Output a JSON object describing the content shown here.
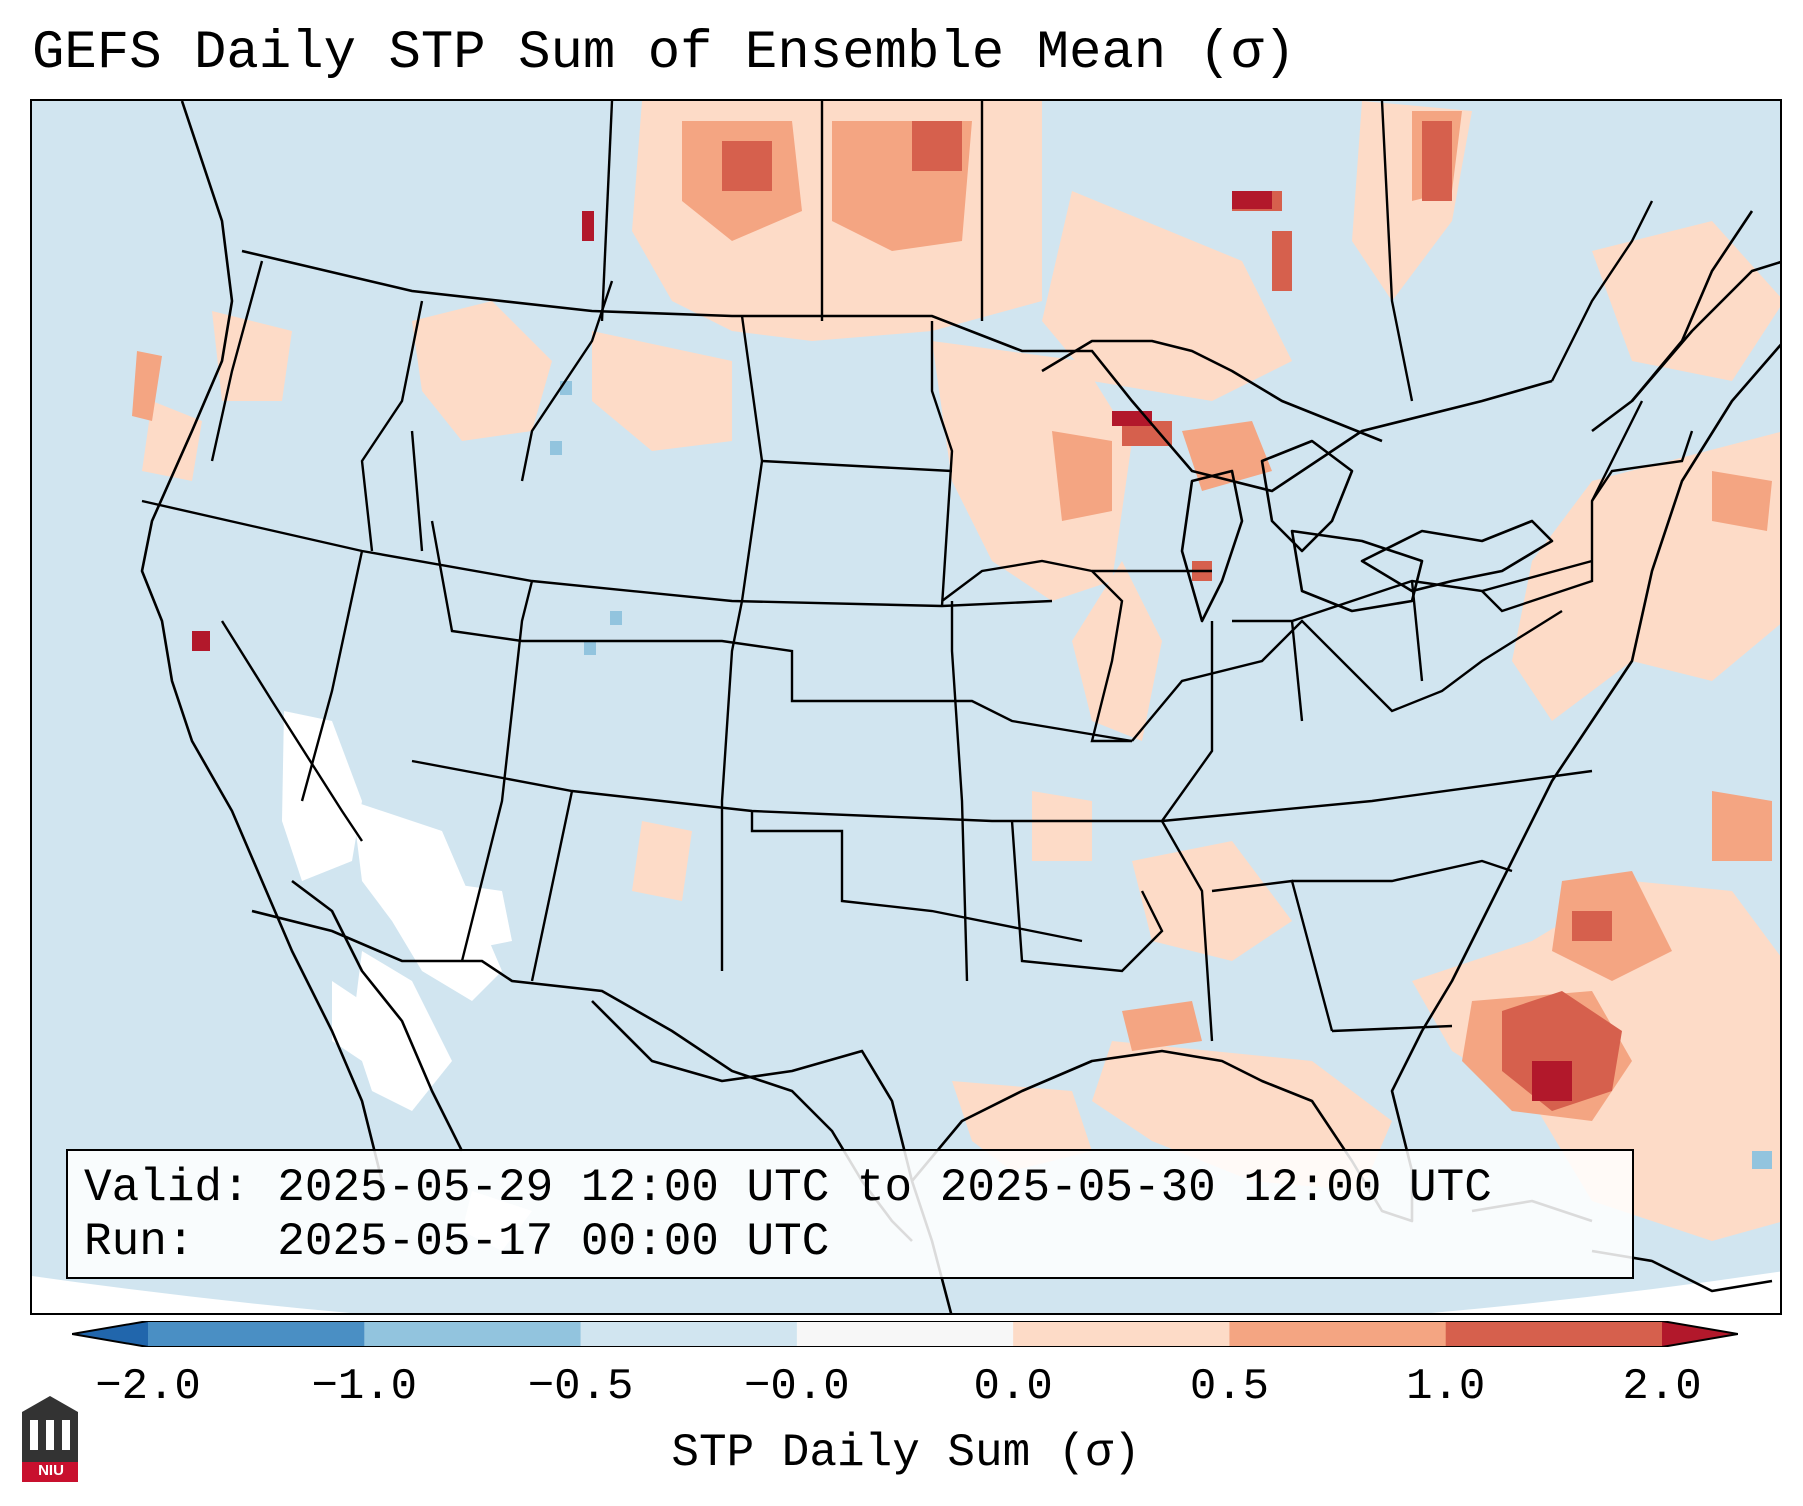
{
  "title": "GEFS Daily STP Sum of Ensemble Mean (σ)",
  "info": {
    "valid_line": "Valid: 2025-05-29 12:00 UTC to 2025-05-30 12:00 UTC",
    "run_line": "Run:   2025-05-17 00:00 UTC"
  },
  "colorbar": {
    "label": "STP Daily Sum (σ)",
    "ticks": [
      "−2.0",
      "−1.0",
      "−0.5",
      "−0.0",
      "0.0",
      "0.5",
      "1.0",
      "2.0"
    ],
    "bins": [
      {
        "range": "-2.0 to -1.0",
        "color": "#4a8fc4"
      },
      {
        "range": "-1.0 to -0.5",
        "color": "#92c4de"
      },
      {
        "range": "-0.5 to -0.0",
        "color": "#d1e5f0"
      },
      {
        "range": "-0.0 to 0.0",
        "color": "#f7f7f7"
      },
      {
        "range": "0.0 to 0.5",
        "color": "#fddbc7"
      },
      {
        "range": "0.5 to 1.0",
        "color": "#f4a582"
      },
      {
        "range": "1.0 to 2.0",
        "color": "#d6604d"
      }
    ],
    "under_color": "#2166ac",
    "over_color": "#b2182b"
  },
  "logo": {
    "text": "NIU"
  }
}
